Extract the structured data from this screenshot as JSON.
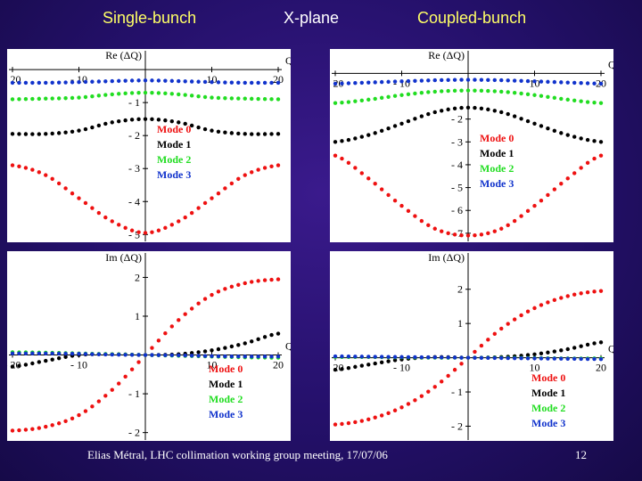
{
  "header": {
    "left": "Single-bunch",
    "center": "X-plane",
    "right": "Coupled-bunch"
  },
  "footer": {
    "credit": "Elias Métral, LHC collimation working group meeting, 17/07/06",
    "page": "12"
  },
  "colors": {
    "mode0": "#ee1111",
    "mode1": "#000000",
    "mode2": "#22dd22",
    "mode3": "#1133cc"
  },
  "chart_data": [
    {
      "type": "scatter",
      "ylabel": "Re (ΔQ)",
      "xlabel": "Q'",
      "x_ticks": [
        -20,
        -10,
        10,
        20
      ],
      "y_ticks": [
        -1,
        -2,
        -3,
        -4,
        -5
      ],
      "xlim": [
        -20,
        20
      ],
      "ylim": [
        -5.1,
        0.3
      ],
      "legend": [
        "Mode 0",
        "Mode 1",
        "Mode 2",
        "Mode 3"
      ],
      "legend_position": "right-of-axis",
      "series": [
        {
          "name": "Mode 0",
          "x": [
            -20,
            -15,
            -10,
            -5,
            0,
            5,
            10,
            15,
            20
          ],
          "values": [
            -2.9,
            -3.2,
            -3.9,
            -4.6,
            -4.95,
            -4.6,
            -3.9,
            -3.2,
            -2.9
          ]
        },
        {
          "name": "Mode 1",
          "x": [
            -20,
            -15,
            -10,
            -5,
            0,
            5,
            10,
            15,
            20
          ],
          "values": [
            -1.95,
            -1.95,
            -1.85,
            -1.6,
            -1.5,
            -1.6,
            -1.85,
            -1.95,
            -1.95
          ]
        },
        {
          "name": "Mode 2",
          "x": [
            -20,
            -15,
            -10,
            -5,
            0,
            5,
            10,
            15,
            20
          ],
          "values": [
            -0.9,
            -0.88,
            -0.85,
            -0.75,
            -0.7,
            -0.75,
            -0.85,
            -0.88,
            -0.9
          ]
        },
        {
          "name": "Mode 3",
          "x": [
            -20,
            -15,
            -10,
            -5,
            0,
            5,
            10,
            15,
            20
          ],
          "values": [
            -0.4,
            -0.4,
            -0.38,
            -0.35,
            -0.33,
            -0.35,
            -0.38,
            -0.4,
            -0.4
          ]
        }
      ]
    },
    {
      "type": "scatter",
      "ylabel": "Re (ΔQ)",
      "xlabel": "Q'",
      "x_ticks": [
        -20,
        -10,
        10,
        20
      ],
      "y_ticks": [
        -2,
        -3,
        -4,
        -5,
        -6,
        -7
      ],
      "xlim": [
        -20,
        20
      ],
      "ylim": [
        -7.2,
        0.6
      ],
      "legend": [
        "Mode 0",
        "Mode 1",
        "Mode 2",
        "Mode 3"
      ],
      "legend_position": "right-of-axis",
      "series": [
        {
          "name": "Mode 0",
          "x": [
            -20,
            -15,
            -10,
            -5,
            0,
            5,
            10,
            15,
            20
          ],
          "values": [
            -3.6,
            -4.6,
            -5.8,
            -6.8,
            -7.1,
            -6.8,
            -5.8,
            -4.6,
            -3.6
          ]
        },
        {
          "name": "Mode 1",
          "x": [
            -20,
            -15,
            -10,
            -5,
            0,
            5,
            10,
            15,
            20
          ],
          "values": [
            -3.0,
            -2.7,
            -2.2,
            -1.7,
            -1.5,
            -1.7,
            -2.2,
            -2.7,
            -3.0
          ]
        },
        {
          "name": "Mode 2",
          "x": [
            -20,
            -15,
            -10,
            -5,
            0,
            5,
            10,
            15,
            20
          ],
          "values": [
            -1.3,
            -1.15,
            -0.95,
            -0.8,
            -0.75,
            -0.8,
            -0.95,
            -1.15,
            -1.3
          ]
        },
        {
          "name": "Mode 3",
          "x": [
            -20,
            -15,
            -10,
            -5,
            0,
            5,
            10,
            15,
            20
          ],
          "values": [
            -0.45,
            -0.4,
            -0.35,
            -0.3,
            -0.28,
            -0.3,
            -0.35,
            -0.4,
            -0.45
          ]
        }
      ]
    },
    {
      "type": "scatter",
      "ylabel": "Im (ΔQ)",
      "xlabel": "Q'",
      "x_ticks": [
        -20,
        -10,
        10,
        20
      ],
      "y_ticks": [
        2,
        1,
        -1,
        -2
      ],
      "xlim": [
        -20,
        20
      ],
      "ylim": [
        -2.1,
        2.4
      ],
      "legend": [
        "Mode 0",
        "Mode 1",
        "Mode 2",
        "Mode 3"
      ],
      "legend_position": "bottom-right",
      "series": [
        {
          "name": "Mode 0",
          "x": [
            -20,
            -15,
            -10,
            -5,
            0,
            5,
            10,
            15,
            20
          ],
          "values": [
            -1.95,
            -1.85,
            -1.55,
            -0.9,
            0.0,
            0.9,
            1.55,
            1.85,
            1.95
          ]
        },
        {
          "name": "Mode 1",
          "x": [
            -20,
            -15,
            -10,
            -5,
            0,
            5,
            10,
            15,
            20
          ],
          "values": [
            -0.3,
            -0.15,
            0.0,
            0.02,
            0.0,
            0.02,
            0.12,
            0.3,
            0.55
          ]
        },
        {
          "name": "Mode 2",
          "x": [
            -20,
            -15,
            -10,
            -5,
            0,
            5,
            10,
            15,
            20
          ],
          "values": [
            0.07,
            0.06,
            0.04,
            0.02,
            0.0,
            -0.02,
            -0.04,
            -0.06,
            -0.07
          ]
        },
        {
          "name": "Mode 3",
          "x": [
            -20,
            -15,
            -10,
            -5,
            0,
            5,
            10,
            15,
            20
          ],
          "values": [
            0.04,
            0.04,
            0.03,
            0.01,
            0.0,
            -0.01,
            -0.03,
            -0.04,
            -0.04
          ]
        }
      ]
    },
    {
      "type": "scatter",
      "ylabel": "Im (ΔQ)",
      "xlabel": "Q'",
      "x_ticks": [
        -20,
        -10,
        10,
        20
      ],
      "y_ticks": [
        2,
        1,
        -1,
        -2
      ],
      "xlim": [
        -20,
        20
      ],
      "ylim": [
        -2.3,
        2.8
      ],
      "legend": [
        "Mode 0",
        "Mode 1",
        "Mode 2",
        "Mode 3"
      ],
      "legend_position": "bottom-right",
      "series": [
        {
          "name": "Mode 0",
          "x": [
            -20,
            -15,
            -10,
            -5,
            0,
            5,
            10,
            15,
            20
          ],
          "values": [
            -1.95,
            -1.8,
            -1.45,
            -0.85,
            0.0,
            0.85,
            1.45,
            1.8,
            1.95
          ]
        },
        {
          "name": "Mode 1",
          "x": [
            -20,
            -15,
            -10,
            -5,
            0,
            5,
            10,
            15,
            20
          ],
          "values": [
            -0.35,
            -0.2,
            -0.05,
            0.02,
            0.0,
            0.02,
            0.1,
            0.25,
            0.45
          ]
        },
        {
          "name": "Mode 2",
          "x": [
            -20,
            -15,
            -10,
            -5,
            0,
            5,
            10,
            15,
            20
          ],
          "values": [
            0.02,
            0.02,
            0.01,
            0.0,
            0.0,
            0.0,
            -0.01,
            -0.02,
            -0.02
          ]
        },
        {
          "name": "Mode 3",
          "x": [
            -20,
            -15,
            -10,
            -5,
            0,
            5,
            10,
            15,
            20
          ],
          "values": [
            0.04,
            0.03,
            0.02,
            0.01,
            0.0,
            -0.01,
            -0.02,
            -0.03,
            -0.04
          ]
        }
      ]
    }
  ]
}
